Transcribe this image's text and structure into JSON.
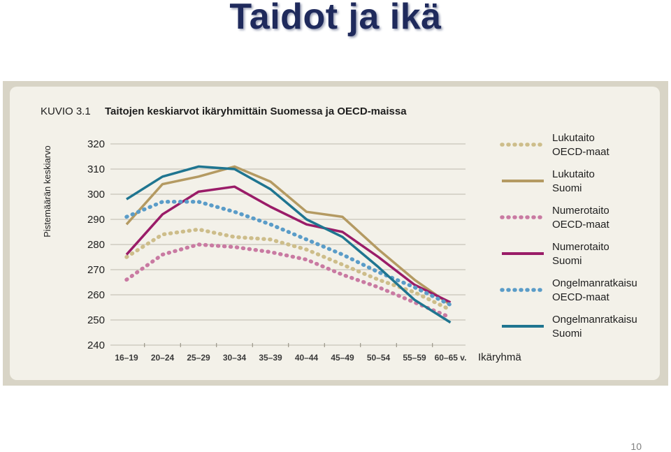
{
  "slide": {
    "title": "Taidot ja ikä",
    "page_number": "10"
  },
  "colors": {
    "background": "#f3f1e9",
    "outer_frame": "#d8d4c6",
    "gridline": "#bdb9ad",
    "text": "#1e1e1e"
  },
  "chart_data": {
    "type": "line",
    "figure_label": "KUVIO 3.1",
    "title": "Taitojen keskiarvot ikäryhmittäin Suomessa ja OECD-maissa",
    "xlabel": "Ikäryhmä",
    "ylabel": "Pistemäärän keskiarvo",
    "categories": [
      "16–19",
      "20–24",
      "25–29",
      "30–34",
      "35–39",
      "40–44",
      "45–49",
      "50–54",
      "55–59",
      "60–65 v."
    ],
    "ylim": [
      240,
      320
    ],
    "yticks": [
      240,
      250,
      260,
      270,
      280,
      290,
      300,
      310,
      320
    ],
    "grid": true,
    "legend_position": "right",
    "series": [
      {
        "name": "Lukutaito OECD-maat",
        "legend_lines": [
          "Lukutaito",
          "OECD-maat"
        ],
        "color": "#cdbd8a",
        "dashed": true,
        "values": [
          275,
          284,
          286,
          283,
          282,
          278,
          272,
          266,
          261,
          254
        ]
      },
      {
        "name": "Lukutaito Suomi",
        "legend_lines": [
          "Lukutaito",
          "Suomi"
        ],
        "color": "#b49a62",
        "dashed": false,
        "values": [
          288,
          304,
          307,
          311,
          305,
          293,
          291,
          278,
          266,
          256
        ]
      },
      {
        "name": "Numerotaito OECD-maat",
        "legend_lines": [
          "Numerotaito",
          "OECD-maat"
        ],
        "color": "#c97aa2",
        "dashed": true,
        "values": [
          266,
          276,
          280,
          279,
          277,
          274,
          268,
          263,
          257,
          251
        ]
      },
      {
        "name": "Numerotaito Suomi",
        "legend_lines": [
          "Numerotaito",
          "Suomi"
        ],
        "color": "#9a1c68",
        "dashed": false,
        "values": [
          276,
          292,
          301,
          303,
          295,
          288,
          285,
          275,
          264,
          257
        ]
      },
      {
        "name": "Ongelmanratkaisu OECD-maat",
        "legend_lines": [
          "Ongelmanratkaisu",
          "OECD-maat"
        ],
        "color": "#5a9cc8",
        "dashed": true,
        "values": [
          291,
          297,
          297,
          293,
          288,
          282,
          276,
          269,
          263,
          256
        ]
      },
      {
        "name": "Ongelmanratkaisu Suomi",
        "legend_lines": [
          "Ongelmanratkaisu",
          "Suomi"
        ],
        "color": "#1f7590",
        "dashed": false,
        "values": [
          298,
          307,
          311,
          310,
          302,
          290,
          283,
          271,
          258,
          249
        ]
      }
    ]
  }
}
